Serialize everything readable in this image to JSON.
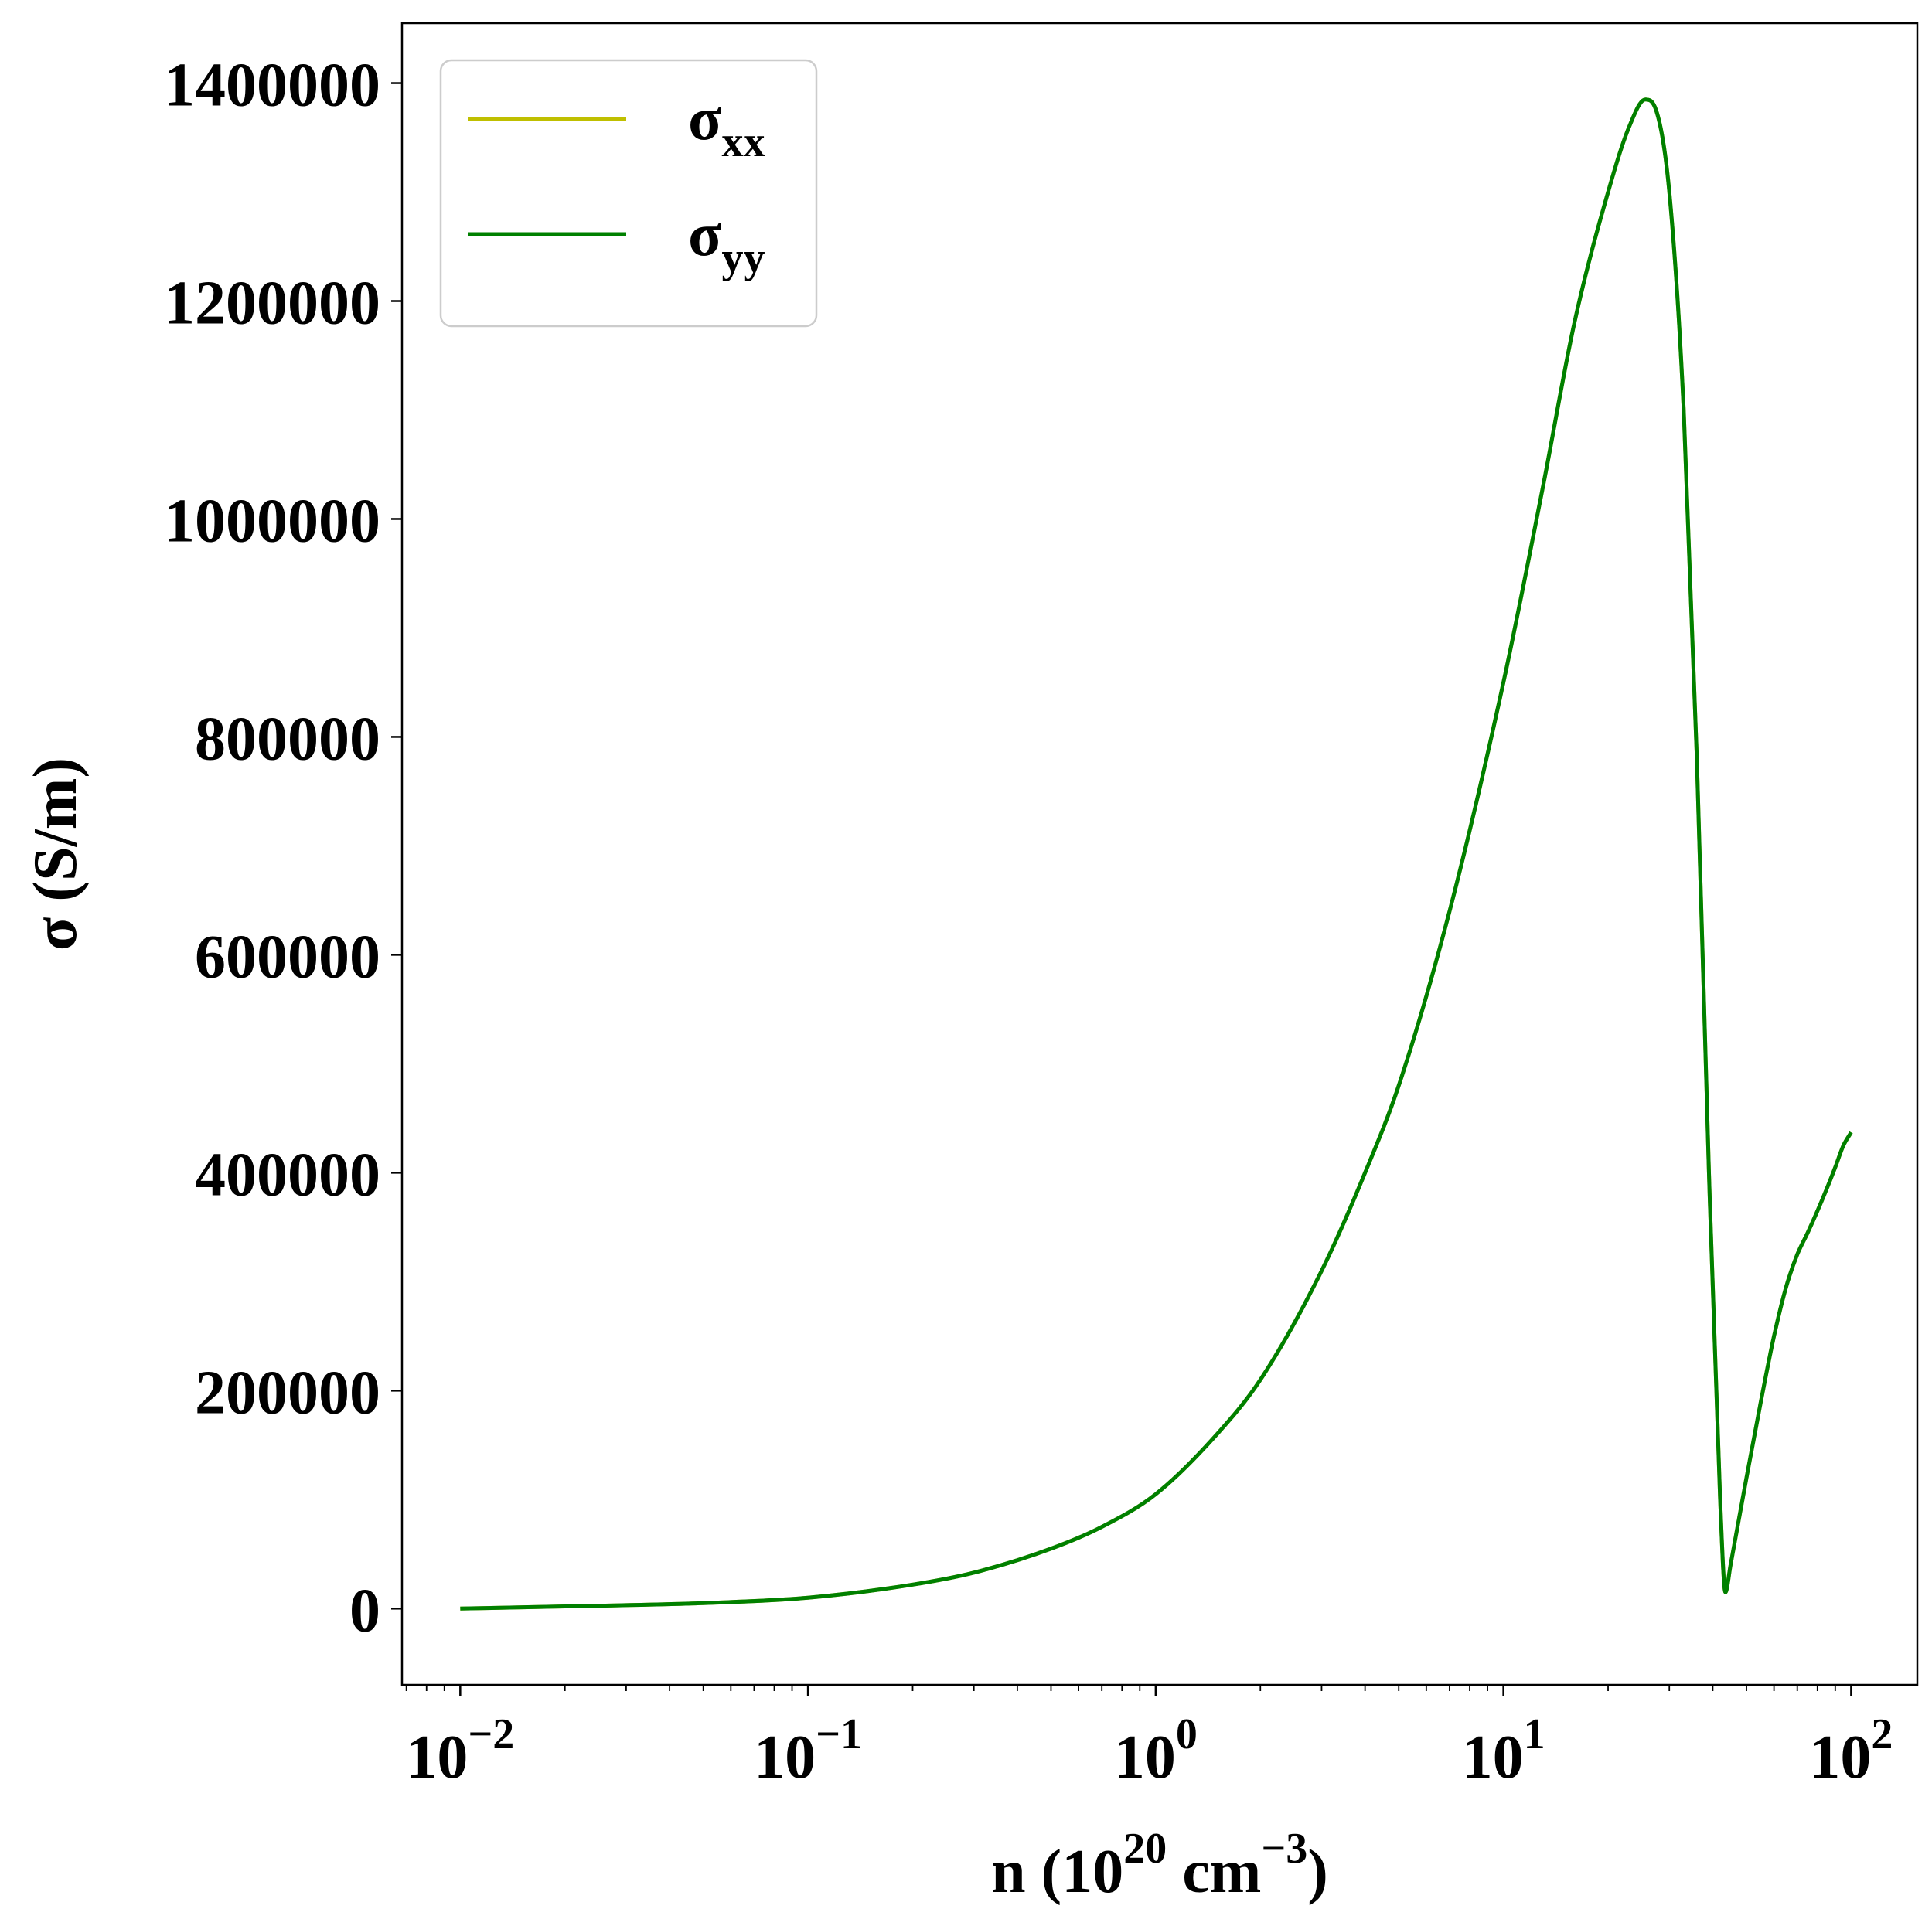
{
  "chart_data": {
    "type": "line",
    "title": "",
    "xlabel": {
      "base": "n (10",
      "sup1": "20",
      "mid": " cm",
      "sup2": "−3",
      "end": ")"
    },
    "ylabel": "σ (S/m)",
    "xscale": "log",
    "xlim": [
      0.0068,
      155
    ],
    "ylim": [
      -70000,
      1455000
    ],
    "grid": false,
    "legend": "top-left",
    "x_ticks": [
      {
        "value": 0.01,
        "base": "10",
        "exp": "−2"
      },
      {
        "value": 0.1,
        "base": "10",
        "exp": "−1"
      },
      {
        "value": 1,
        "base": "10",
        "exp": "0"
      },
      {
        "value": 10,
        "base": "10",
        "exp": "1"
      },
      {
        "value": 100,
        "base": "10",
        "exp": "2"
      }
    ],
    "y_ticks": [
      {
        "value": 0,
        "label": "0"
      },
      {
        "value": 200000,
        "label": "200000"
      },
      {
        "value": 400000,
        "label": "400000"
      },
      {
        "value": 600000,
        "label": "600000"
      },
      {
        "value": 800000,
        "label": "800000"
      },
      {
        "value": 1000000,
        "label": "1000000"
      },
      {
        "value": 1200000,
        "label": "1200000"
      },
      {
        "value": 1400000,
        "label": "1400000"
      }
    ],
    "series": [
      {
        "name": "σxx",
        "name_main": "σ",
        "name_sub": "xx",
        "color": "#bfbf00",
        "x": [
          0.01,
          0.02,
          0.05,
          0.1,
          0.2,
          0.3,
          0.5,
          0.7,
          1.0,
          1.5,
          2.0,
          3.0,
          4.0,
          5.0,
          7.0,
          10.0,
          13.0,
          16.0,
          20.0,
          23.0,
          25.6,
          27.5,
          30.0,
          33.0,
          36.0,
          39.0,
          42.0,
          43.5,
          45.0,
          50.0,
          55.0,
          60.0,
          65.0,
          70.0,
          75.0,
          80.0,
          85.0,
          90.0,
          95.0,
          100.0
        ],
        "y": [
          0,
          2000,
          5000,
          10000,
          22000,
          33000,
          55000,
          75000,
          105000,
          160000,
          210000,
          310000,
          400000,
          480000,
          640000,
          850000,
          1030000,
          1180000,
          1300000,
          1360000,
          1385000,
          1375000,
          1300000,
          1100000,
          780000,
          400000,
          100000,
          15000,
          40000,
          120000,
          190000,
          250000,
          295000,
          325000,
          345000,
          365000,
          385000,
          405000,
          425000,
          437000
        ]
      },
      {
        "name": "σyy",
        "name_main": "σ",
        "name_sub": "yy",
        "color": "#008000",
        "x": [
          0.01,
          0.02,
          0.05,
          0.1,
          0.2,
          0.3,
          0.5,
          0.7,
          1.0,
          1.5,
          2.0,
          3.0,
          4.0,
          5.0,
          7.0,
          10.0,
          13.0,
          16.0,
          20.0,
          23.0,
          25.6,
          27.5,
          30.0,
          33.0,
          36.0,
          39.0,
          42.0,
          43.5,
          45.0,
          50.0,
          55.0,
          60.0,
          65.0,
          70.0,
          75.0,
          80.0,
          85.0,
          90.0,
          95.0,
          100.0
        ],
        "y": [
          0,
          2000,
          5000,
          10000,
          22000,
          33000,
          55000,
          75000,
          105000,
          160000,
          210000,
          310000,
          400000,
          480000,
          640000,
          850000,
          1030000,
          1180000,
          1300000,
          1360000,
          1385000,
          1375000,
          1300000,
          1100000,
          780000,
          400000,
          100000,
          15000,
          40000,
          120000,
          190000,
          250000,
          295000,
          325000,
          345000,
          365000,
          385000,
          405000,
          425000,
          437000
        ]
      }
    ]
  }
}
